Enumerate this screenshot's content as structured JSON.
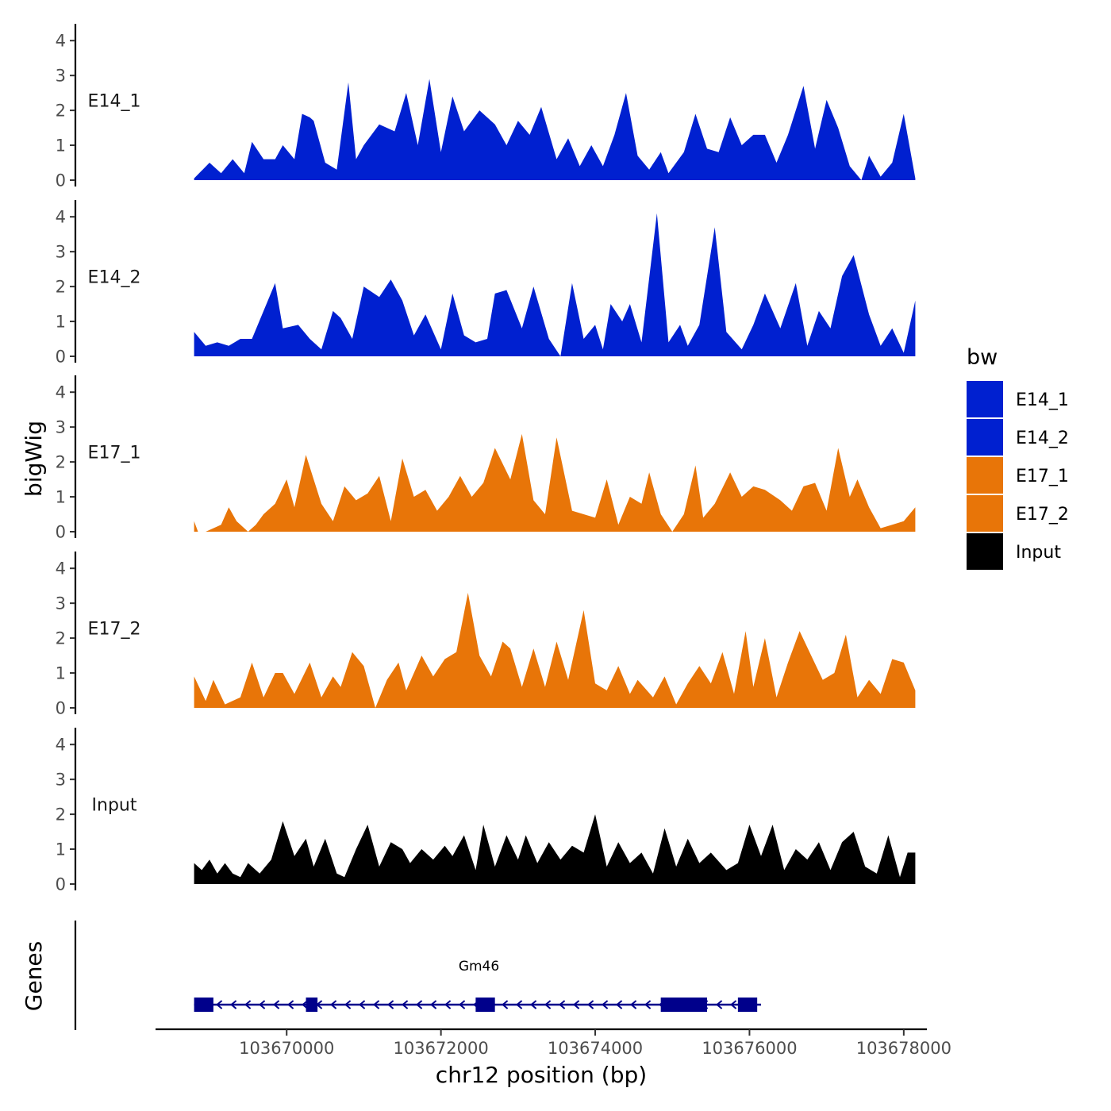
{
  "chart_data": {
    "type": "area",
    "chromosome": "chr12",
    "xlabel": "chr12 position (bp)",
    "ylabel": "bigWig",
    "genes_label": "Genes",
    "xlim": [
      103668300,
      103678300
    ],
    "x_ticks": [
      {
        "value": 103670000,
        "label": "103670000"
      },
      {
        "value": 103672000,
        "label": "103672000"
      },
      {
        "value": 103674000,
        "label": "103674000"
      },
      {
        "value": 103676000,
        "label": "103676000"
      },
      {
        "value": 103678000,
        "label": "103678000"
      }
    ],
    "ylim": [
      0,
      4.3
    ],
    "y_ticks": [
      {
        "value": 0,
        "label": "0"
      },
      {
        "value": 1,
        "label": "1"
      },
      {
        "value": 2,
        "label": "2"
      },
      {
        "value": 3,
        "label": "3"
      },
      {
        "value": 4,
        "label": "4"
      }
    ],
    "legend": {
      "title": "bw",
      "entries": [
        {
          "name": "E14_1",
          "color": "#0020d0"
        },
        {
          "name": "E14_2",
          "color": "#0020d0"
        },
        {
          "name": "E17_1",
          "color": "#e87508"
        },
        {
          "name": "E17_2",
          "color": "#e87508"
        },
        {
          "name": "Input",
          "color": "#000000"
        }
      ]
    },
    "series": [
      {
        "name": "E14_1",
        "color": "#0020d0",
        "x": [
          103668800,
          103669000,
          103669150,
          103669300,
          103669450,
          103669550,
          103669700,
          103669850,
          103669950,
          103670100,
          103670200,
          103670300,
          103670350,
          103670500,
          103670650,
          103670800,
          103670900,
          103671000,
          103671200,
          103671400,
          103671550,
          103671700,
          103671850,
          103672000,
          103672150,
          103672300,
          103672500,
          103672700,
          103672850,
          103673000,
          103673150,
          103673300,
          103673500,
          103673650,
          103673800,
          103673950,
          103674100,
          103674250,
          103674400,
          103674550,
          103674700,
          103674850,
          103674950,
          103675150,
          103675300,
          103675450,
          103675600,
          103675750,
          103675900,
          103676050,
          103676200,
          103676350,
          103676500,
          103676700,
          103676850,
          103677000,
          103677150,
          103677300,
          103677450,
          103677550,
          103677700,
          103677850,
          103678000,
          103678150
        ],
        "values": [
          0.05,
          0.5,
          0.2,
          0.6,
          0.2,
          1.1,
          0.6,
          0.6,
          1.0,
          0.6,
          1.9,
          1.8,
          1.7,
          0.5,
          0.3,
          2.8,
          0.6,
          1.0,
          1.6,
          1.4,
          2.5,
          1.0,
          2.9,
          0.8,
          2.4,
          1.4,
          2.0,
          1.6,
          1.0,
          1.7,
          1.3,
          2.1,
          0.6,
          1.2,
          0.4,
          1.0,
          0.4,
          1.3,
          2.5,
          0.7,
          0.3,
          0.8,
          0.2,
          0.8,
          1.9,
          0.9,
          0.8,
          1.8,
          1.0,
          1.3,
          1.3,
          0.5,
          1.3,
          2.7,
          0.9,
          2.3,
          1.5,
          0.4,
          0.0,
          0.7,
          0.1,
          0.5,
          1.9,
          0.05
        ]
      },
      {
        "name": "E14_2",
        "color": "#0020d0",
        "x": [
          103668800,
          103668950,
          103669100,
          103669250,
          103669400,
          103669550,
          103669700,
          103669850,
          103669950,
          103670150,
          103670300,
          103670450,
          103670600,
          103670700,
          103670850,
          103671000,
          103671200,
          103671350,
          103671500,
          103671650,
          103671800,
          103672000,
          103672150,
          103672300,
          103672450,
          103672600,
          103672700,
          103672850,
          103673050,
          103673200,
          103673400,
          103673550,
          103673700,
          103673850,
          103674000,
          103674100,
          103674200,
          103674350,
          103674450,
          103674600,
          103674800,
          103674950,
          103675100,
          103675200,
          103675350,
          103675550,
          103675700,
          103675900,
          103676050,
          103676200,
          103676400,
          103676600,
          103676750,
          103676900,
          103677050,
          103677200,
          103677350,
          103677550,
          103677700,
          103677850,
          103678000,
          103678150
        ],
        "values": [
          0.7,
          0.3,
          0.4,
          0.3,
          0.5,
          0.5,
          1.3,
          2.1,
          0.8,
          0.9,
          0.5,
          0.2,
          1.3,
          1.1,
          0.5,
          2.0,
          1.7,
          2.2,
          1.6,
          0.6,
          1.2,
          0.2,
          1.8,
          0.6,
          0.4,
          0.5,
          1.8,
          1.9,
          0.8,
          2.0,
          0.5,
          0.0,
          2.1,
          0.5,
          0.9,
          0.2,
          1.5,
          1.0,
          1.5,
          0.4,
          4.1,
          0.4,
          0.9,
          0.3,
          0.9,
          3.7,
          0.7,
          0.2,
          0.9,
          1.8,
          0.8,
          2.1,
          0.3,
          1.3,
          0.8,
          2.3,
          2.9,
          1.2,
          0.3,
          0.8,
          0.1,
          1.6
        ]
      },
      {
        "name": "E17_1",
        "color": "#e87508",
        "x": [
          103668800,
          103668850,
          103668950,
          103669150,
          103669250,
          103669350,
          103669500,
          103669600,
          103669700,
          103669850,
          103670000,
          103670100,
          103670250,
          103670450,
          103670600,
          103670750,
          103670900,
          103671050,
          103671200,
          103671350,
          103671500,
          103671650,
          103671800,
          103671950,
          103672100,
          103672250,
          103672400,
          103672550,
          103672700,
          103672900,
          103673050,
          103673200,
          103673350,
          103673500,
          103673700,
          103673850,
          103674000,
          103674150,
          103674300,
          103674450,
          103674600,
          103674700,
          103674850,
          103675000,
          103675150,
          103675300,
          103675400,
          103675550,
          103675750,
          103675900,
          103676050,
          103676200,
          103676400,
          103676550,
          103676700,
          103676850,
          103677000,
          103677150,
          103677300,
          103677400,
          103677550,
          103677700,
          103677850,
          103678000,
          103678150
        ],
        "values": [
          0.3,
          0.0,
          0.0,
          0.2,
          0.7,
          0.3,
          0.0,
          0.2,
          0.5,
          0.8,
          1.5,
          0.7,
          2.2,
          0.8,
          0.3,
          1.3,
          0.9,
          1.1,
          1.6,
          0.3,
          2.1,
          1.0,
          1.2,
          0.6,
          1.0,
          1.6,
          1.0,
          1.4,
          2.4,
          1.5,
          2.8,
          0.9,
          0.5,
          2.7,
          0.6,
          0.5,
          0.4,
          1.5,
          0.2,
          1.0,
          0.8,
          1.7,
          0.5,
          0.0,
          0.5,
          1.9,
          0.4,
          0.8,
          1.7,
          1.0,
          1.3,
          1.2,
          0.9,
          0.6,
          1.3,
          1.4,
          0.6,
          2.4,
          1.0,
          1.5,
          0.7,
          0.1,
          0.2,
          0.3,
          0.7
        ]
      },
      {
        "name": "E17_2",
        "color": "#e87508",
        "x": [
          103668800,
          103668950,
          103669050,
          103669200,
          103669400,
          103669550,
          103669700,
          103669850,
          103669950,
          103670100,
          103670300,
          103670450,
          103670600,
          103670700,
          103670850,
          103671000,
          103671150,
          103671300,
          103671450,
          103671550,
          103671750,
          103671900,
          103672050,
          103672200,
          103672350,
          103672500,
          103672650,
          103672800,
          103672900,
          103673050,
          103673200,
          103673350,
          103673500,
          103673650,
          103673850,
          103674000,
          103674150,
          103674300,
          103674450,
          103674550,
          103674750,
          103674900,
          103675050,
          103675200,
          103675350,
          103675500,
          103675650,
          103675800,
          103675950,
          103676050,
          103676200,
          103676350,
          103676500,
          103676650,
          103676800,
          103676950,
          103677100,
          103677250,
          103677400,
          103677550,
          103677700,
          103677850,
          103678000,
          103678150
        ],
        "values": [
          0.9,
          0.2,
          0.8,
          0.1,
          0.3,
          1.3,
          0.3,
          1.0,
          1.0,
          0.4,
          1.3,
          0.3,
          0.9,
          0.6,
          1.6,
          1.2,
          0.0,
          0.8,
          1.3,
          0.5,
          1.5,
          0.9,
          1.4,
          1.6,
          3.3,
          1.5,
          0.9,
          1.9,
          1.7,
          0.6,
          1.7,
          0.6,
          1.9,
          0.8,
          2.8,
          0.7,
          0.5,
          1.2,
          0.4,
          0.8,
          0.3,
          0.9,
          0.1,
          0.7,
          1.2,
          0.7,
          1.6,
          0.4,
          2.2,
          0.6,
          2.0,
          0.3,
          1.3,
          2.2,
          1.5,
          0.8,
          1.0,
          2.1,
          0.3,
          0.8,
          0.4,
          1.4,
          1.3,
          0.5
        ]
      },
      {
        "name": "Input",
        "color": "#000000",
        "x": [
          103668800,
          103668900,
          103669000,
          103669100,
          103669200,
          103669300,
          103669400,
          103669500,
          103669650,
          103669800,
          103669950,
          103670100,
          103670250,
          103670350,
          103670500,
          103670650,
          103670750,
          103670900,
          103671050,
          103671200,
          103671350,
          103671500,
          103671600,
          103671750,
          103671900,
          103672050,
          103672150,
          103672300,
          103672450,
          103672550,
          103672700,
          103672850,
          103673000,
          103673100,
          103673250,
          103673400,
          103673550,
          103673700,
          103673850,
          103674000,
          103674150,
          103674300,
          103674450,
          103674600,
          103674750,
          103674900,
          103675050,
          103675200,
          103675350,
          103675500,
          103675700,
          103675850,
          103676000,
          103676150,
          103676300,
          103676450,
          103676600,
          103676750,
          103676900,
          103677050,
          103677200,
          103677350,
          103677500,
          103677650,
          103677800,
          103677950,
          103678050,
          103678150
        ],
        "values": [
          0.6,
          0.4,
          0.7,
          0.3,
          0.6,
          0.3,
          0.2,
          0.6,
          0.3,
          0.7,
          1.8,
          0.8,
          1.3,
          0.5,
          1.3,
          0.3,
          0.2,
          1.0,
          1.7,
          0.5,
          1.2,
          1.0,
          0.6,
          1.0,
          0.7,
          1.1,
          0.8,
          1.4,
          0.4,
          1.7,
          0.5,
          1.4,
          0.7,
          1.4,
          0.6,
          1.2,
          0.7,
          1.1,
          0.9,
          2.0,
          0.5,
          1.2,
          0.6,
          0.9,
          0.3,
          1.6,
          0.5,
          1.3,
          0.6,
          0.9,
          0.4,
          0.6,
          1.7,
          0.8,
          1.7,
          0.4,
          1.0,
          0.7,
          1.2,
          0.4,
          1.2,
          1.5,
          0.5,
          0.3,
          1.4,
          0.2,
          0.9,
          0.9
        ]
      }
    ],
    "genes": [
      {
        "name": "Gm46",
        "strand": "-",
        "start": 103668800,
        "end": 103676150,
        "exons": [
          [
            103668800,
            103669050
          ],
          [
            103670250,
            103670400
          ],
          [
            103672450,
            103672700
          ],
          [
            103674850,
            103675450
          ],
          [
            103675850,
            103676100
          ]
        ]
      }
    ]
  }
}
